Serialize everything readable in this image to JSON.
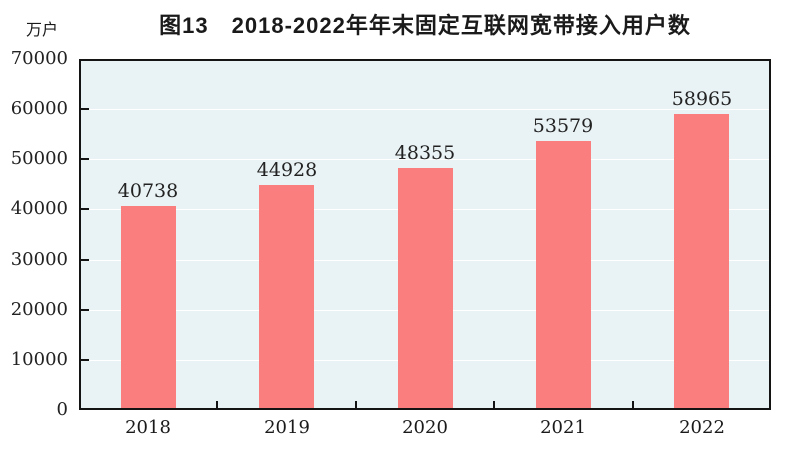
{
  "chart_data": {
    "type": "bar",
    "title": "图13　2018-2022年年末固定互联网宽带接入用户数",
    "unit_label": "万户",
    "categories": [
      "2018",
      "2019",
      "2020",
      "2021",
      "2022"
    ],
    "values": [
      40738,
      44928,
      48355,
      53579,
      58965
    ],
    "value_labels": [
      "40738",
      "44928",
      "48355",
      "53579",
      "58965"
    ],
    "ytick_labels": [
      "0",
      "10000",
      "20000",
      "30000",
      "40000",
      "50000",
      "60000",
      "70000"
    ],
    "ylim": [
      0,
      70000
    ],
    "ytick_step": 10000,
    "grid": true,
    "legend": "none",
    "colors": {
      "bar": "#fb7e7e",
      "plot_background": "#e9f2f4",
      "gridline": "#ffffff",
      "axis": "#141414",
      "label_text": "#222222",
      "page_background": "#ffffff"
    }
  }
}
